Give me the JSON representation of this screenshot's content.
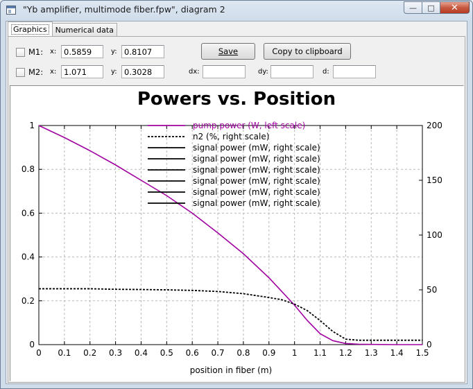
{
  "window": {
    "title": "\"Yb amplifier, multimode fiber.fpw\", diagram 2",
    "minimize_glyph": "—",
    "maximize_glyph": "□",
    "close_glyph": "✕"
  },
  "tabs": [
    {
      "label": "Graphics",
      "active": true
    },
    {
      "label": "Numerical data",
      "active": false
    }
  ],
  "markers": {
    "m1": {
      "label": "M1:",
      "x_label": "x:",
      "x_value": "0.5859",
      "y_label": "y:",
      "y_value": "0.8107",
      "checked": false
    },
    "m2": {
      "label": "M2:",
      "x_label": "x:",
      "x_value": "1.071",
      "y_label": "y:",
      "y_value": "0.3028",
      "checked": false
    }
  },
  "diffs": {
    "dx_label": "dx:",
    "dx_value": "",
    "dy_label": "dy:",
    "dy_value": "",
    "d_label": "d:",
    "d_value": ""
  },
  "buttons": {
    "save_label": "Save",
    "copy_label": "Copy to clipboard"
  },
  "chart_data": {
    "type": "line",
    "title": "Powers vs. Position",
    "xlabel": "position in fiber (m)",
    "xlim": [
      0,
      1.5
    ],
    "ylim_left": [
      0,
      1
    ],
    "ylim_right": [
      0,
      200
    ],
    "x_ticks": [
      "0",
      "0.1",
      "0.2",
      "0.3",
      "0.4",
      "0.5",
      "0.6",
      "0.7",
      "0.8",
      "0.9",
      "1",
      "1.1",
      "1.2",
      "1.3",
      "1.4",
      "1.5"
    ],
    "y_ticks_left": [
      "0",
      "0.2",
      "0.4",
      "0.6",
      "0.8",
      "1"
    ],
    "y_ticks_right": [
      "0",
      "50",
      "100",
      "150",
      "200"
    ],
    "grid": true,
    "legend_position": "top-center",
    "series": [
      {
        "name": "pump power (W, left scale)",
        "axis": "left",
        "color": "#a000a0",
        "style": "solid",
        "x": [
          0,
          0.1,
          0.2,
          0.3,
          0.4,
          0.5,
          0.6,
          0.7,
          0.8,
          0.9,
          1.0,
          1.05,
          1.1,
          1.15,
          1.2,
          1.25,
          1.3,
          1.4,
          1.5
        ],
        "y": [
          1.0,
          0.945,
          0.885,
          0.82,
          0.75,
          0.68,
          0.6,
          0.51,
          0.415,
          0.305,
          0.18,
          0.11,
          0.05,
          0.018,
          0.005,
          0.002,
          0.001,
          0.0,
          0.0
        ]
      },
      {
        "name": "n2 (%, right scale)",
        "axis": "right",
        "color": "#000000",
        "style": "dashed",
        "x": [
          0,
          0.1,
          0.2,
          0.3,
          0.4,
          0.5,
          0.6,
          0.7,
          0.8,
          0.9,
          0.95,
          1.0,
          1.05,
          1.1,
          1.15,
          1.2,
          1.25,
          1.3,
          1.4,
          1.5
        ],
        "y": [
          51,
          51,
          51,
          50.5,
          50.3,
          50,
          49.5,
          48.5,
          46.5,
          43,
          41,
          37,
          31,
          22,
          12,
          5,
          4,
          4,
          4,
          4
        ]
      },
      {
        "name": "signal power (mW, right scale)",
        "axis": "right",
        "color": "#000000",
        "style": "solid",
        "x": [],
        "y": []
      },
      {
        "name": "signal power (mW, right scale)",
        "axis": "right",
        "color": "#000000",
        "style": "solid",
        "x": [],
        "y": []
      },
      {
        "name": "signal power (mW, right scale)",
        "axis": "right",
        "color": "#000000",
        "style": "solid",
        "x": [],
        "y": []
      },
      {
        "name": "signal power (mW, right scale)",
        "axis": "right",
        "color": "#000000",
        "style": "solid",
        "x": [],
        "y": []
      },
      {
        "name": "signal power (mW, right scale)",
        "axis": "right",
        "color": "#000000",
        "style": "solid",
        "x": [],
        "y": []
      },
      {
        "name": "signal power (mW, right scale)",
        "axis": "right",
        "color": "#000000",
        "style": "solid",
        "x": [],
        "y": []
      }
    ]
  }
}
